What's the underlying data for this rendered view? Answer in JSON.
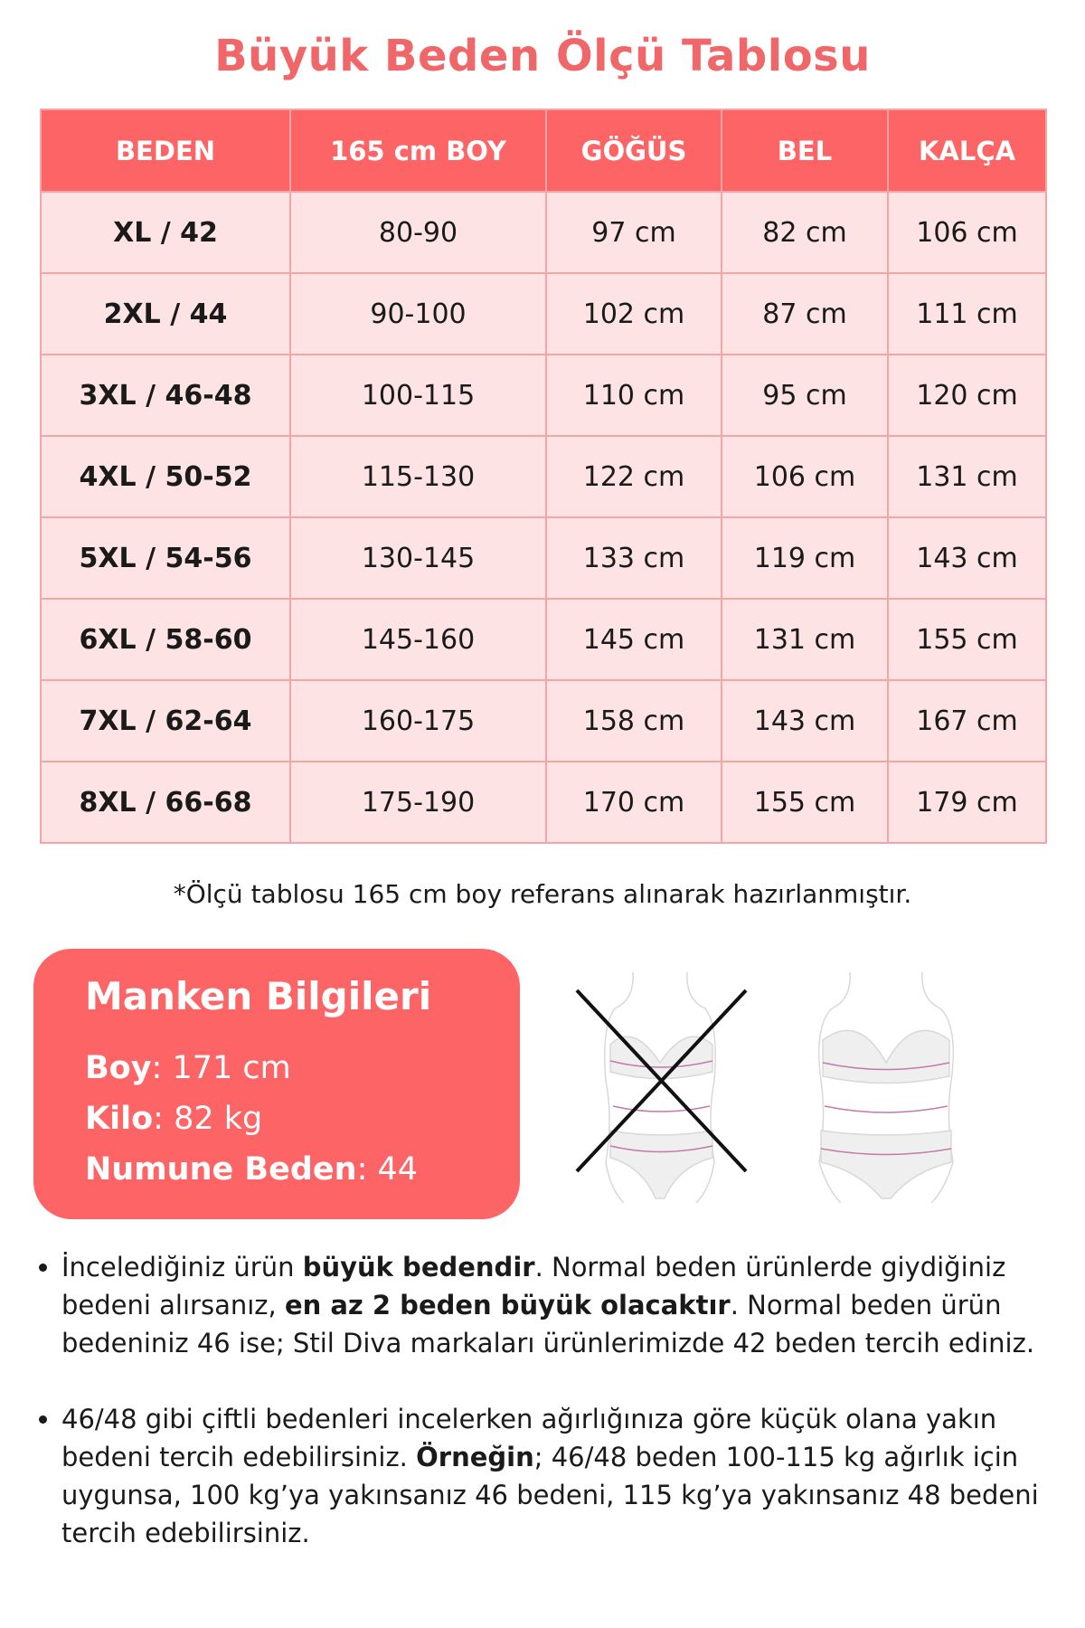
{
  "title": "Büyük Beden Ölçü Tablosu",
  "table": {
    "headers": [
      "BEDEN",
      "165 cm BOY",
      "GÖĞÜS",
      "BEL",
      "KALÇA"
    ],
    "rows": [
      [
        "XL / 42",
        "80-90",
        "97 cm",
        "82 cm",
        "106 cm"
      ],
      [
        "2XL / 44",
        "90-100",
        "102 cm",
        "87 cm",
        "111 cm"
      ],
      [
        "3XL / 46-48",
        "100-115",
        "110 cm",
        "95 cm",
        "120 cm"
      ],
      [
        "4XL / 50-52",
        "115-130",
        "122 cm",
        "106 cm",
        "131 cm"
      ],
      [
        "5XL / 54-56",
        "130-145",
        "133 cm",
        "119 cm",
        "143 cm"
      ],
      [
        "6XL / 58-60",
        "145-160",
        "145 cm",
        "131 cm",
        "155 cm"
      ],
      [
        "7XL / 62-64",
        "160-175",
        "158 cm",
        "143 cm",
        "167 cm"
      ],
      [
        "8XL / 66-68",
        "175-190",
        "170 cm",
        "155 cm",
        "179 cm"
      ]
    ]
  },
  "note": "*Ölçü tablosu 165 cm boy referans alınarak hazırlanmıştır.",
  "model": {
    "title": "Manken Bilgileri",
    "boy_label": "Boy",
    "boy_value": ": 171 cm",
    "kilo_label": "Kilo",
    "kilo_value": ": 82 kg",
    "beden_label": "Numune Beden",
    "beden_value": ": 44"
  },
  "bullets": {
    "b1": [
      "İncelediğiniz ürün ",
      "büyük bedendir",
      ". Normal beden ürünlerde giydiğiniz bedeni alırsanız, ",
      "en az 2 beden büyük olacaktır",
      ". Normal beden ürün bedeniniz 46 ise; Stil Diva markaları ürünlerimizde 42 beden tercih ediniz."
    ],
    "b2": [
      "46/48 gibi çiftli bedenleri incelerken ağırlığınıza göre küçük olana yakın bedeni tercih edebilirsiniz. ",
      "Örneğin",
      "; 46/48 beden 100-115 kg ağırlık için uygunsa, 100 kg’ya yakınsanız 46 bedeni, 115 kg’ya yakınsanız 48 bedeni tercih edebilirsiniz."
    ]
  },
  "colors": {
    "accent": "#fd6466",
    "row_bg": "#fde3e3",
    "border": "#f4a6a6",
    "title": "#f0676a"
  }
}
